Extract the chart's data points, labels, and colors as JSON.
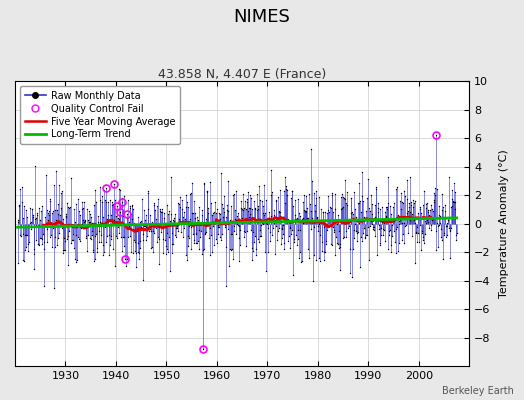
{
  "title": "NIMES",
  "subtitle": "43.858 N, 4.407 E (France)",
  "ylabel": "Temperature Anomaly (°C)",
  "credit": "Berkeley Earth",
  "xlim": [
    1920,
    2010
  ],
  "ylim": [
    -10,
    10
  ],
  "yticks": [
    -8,
    -6,
    -4,
    -2,
    0,
    2,
    4,
    6,
    8,
    10
  ],
  "xticks": [
    1930,
    1940,
    1950,
    1960,
    1970,
    1980,
    1990,
    2000
  ],
  "bg_color": "#e8e8e8",
  "plot_bg": "#ffffff",
  "line_color": "#3333cc",
  "ma_color": "#dd0000",
  "trend_color": "#00bb00",
  "qc_color": "#ff00ff",
  "seed": 17,
  "start_year": 1920.5,
  "end_year": 2007.5,
  "n_months": 1044
}
